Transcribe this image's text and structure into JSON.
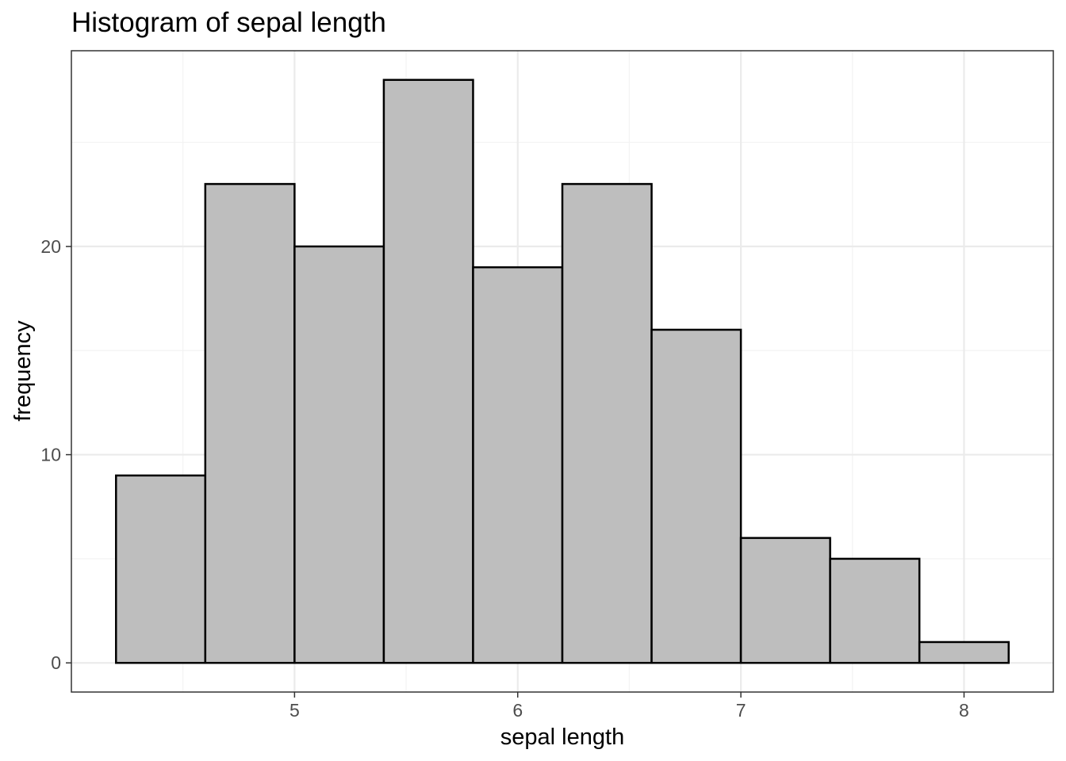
{
  "chart_data": {
    "type": "bar",
    "title": "Histogram of sepal length",
    "xlabel": "sepal length",
    "ylabel": "frequency",
    "bin_edges": [
      4.2,
      4.6,
      5.0,
      5.4,
      5.8,
      6.2,
      6.6,
      7.0,
      7.4,
      7.8,
      8.2
    ],
    "values": [
      9,
      23,
      20,
      28,
      19,
      23,
      16,
      6,
      5,
      1
    ],
    "xlim": [
      4.0,
      8.4
    ],
    "ylim": [
      -1.4,
      29.4
    ],
    "x_ticks": [
      5,
      6,
      7,
      8
    ],
    "x_tick_labels": [
      "5",
      "6",
      "7",
      "8"
    ],
    "y_ticks": [
      0,
      10,
      20
    ],
    "y_tick_labels": [
      "0",
      "10",
      "20"
    ],
    "x_minor_ticks": [
      4.5,
      5.5,
      6.5,
      7.5
    ],
    "y_minor_ticks": [
      5,
      15,
      25
    ],
    "grid": true,
    "colors": {
      "bar_fill": "#bebebe",
      "bar_stroke": "#000000",
      "grid_major": "#ebebeb",
      "grid_minor": "#f3f3f3",
      "panel_border": "#333333",
      "tick_text": "#4d4d4d"
    }
  }
}
